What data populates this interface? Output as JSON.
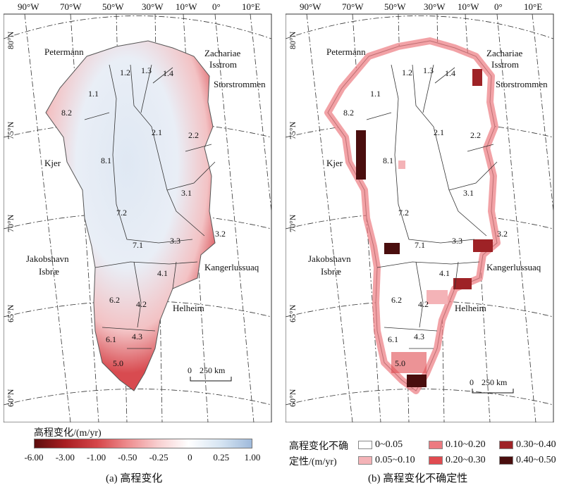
{
  "panel_a": {
    "caption": "(a) 高程变化",
    "colorbar": {
      "label": "高程变化/(m/yr)",
      "ticks": [
        "-6.00",
        "-3.00",
        "-1.00",
        "-0.50",
        "-0.25",
        "0",
        "0.25",
        "1.00"
      ],
      "colors": [
        "#5c0d0d",
        "#a81e22",
        "#d6464a",
        "#ee8d8f",
        "#f8cfd0",
        "#ffffff",
        "#d5e4f2",
        "#9fbadb"
      ]
    }
  },
  "panel_b": {
    "caption": "(b) 高程变化不确定性",
    "legend": {
      "title_line1": "高程变化不确",
      "title_line2": "定性/(m/yr)",
      "items": [
        {
          "label": "0~0.05",
          "color": "#ffffff"
        },
        {
          "label": "0.05~0.10",
          "color": "#f4b3b7"
        },
        {
          "label": "0.10~0.20",
          "color": "#ec7a80"
        },
        {
          "label": "0.20~0.30",
          "color": "#e04b50"
        },
        {
          "label": "0.30~0.40",
          "color": "#9e2226"
        },
        {
          "label": "0.40~0.50",
          "color": "#4a0e0e"
        }
      ]
    }
  },
  "map": {
    "lon_labels": [
      "90°W",
      "70°W",
      "50°W",
      "30°W",
      "10°W",
      "0°",
      "10°E"
    ],
    "lat_labels": [
      "80°N",
      "75°N",
      "70°N",
      "65°N",
      "60°N"
    ],
    "glaciers": [
      "Petermann",
      "Zachariae",
      "Isstrom",
      "Storstrommen",
      "Kjer",
      "Jakobshavn",
      "Isbræ",
      "Kangerlussuaq",
      "Helheim"
    ],
    "basins": [
      "1.1",
      "1.2",
      "1.3",
      "1.4",
      "2.1",
      "2.2",
      "3.1",
      "3.2",
      "3.3",
      "4.1",
      "4.2",
      "4.3",
      "5.0",
      "6.1",
      "6.2",
      "7.1",
      "7.2",
      "8.1",
      "8.2"
    ],
    "scale_zero": "0",
    "scale_label": "250 km"
  }
}
